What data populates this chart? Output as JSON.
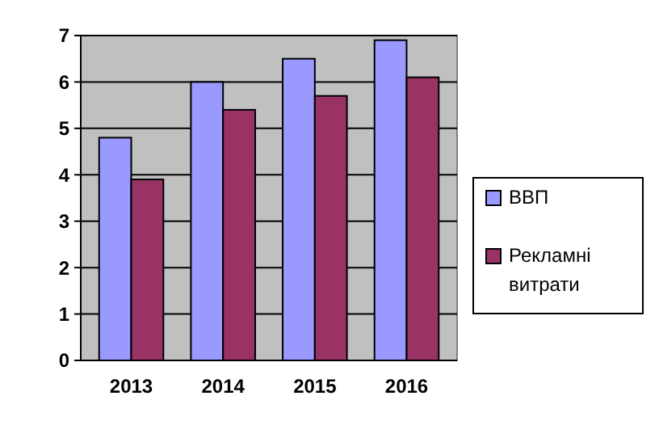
{
  "chart_data": {
    "type": "bar",
    "categories": [
      "2013",
      "2014",
      "2015",
      "2016"
    ],
    "series": [
      {
        "name": "ВВП",
        "color": "#9999ff",
        "values": [
          4.8,
          6.0,
          6.5,
          6.9
        ]
      },
      {
        "name": "Рекламні витрати",
        "color": "#993366",
        "values": [
          3.9,
          5.4,
          5.7,
          6.1
        ]
      }
    ],
    "ylim": [
      0,
      7
    ],
    "yticks": [
      0,
      1,
      2,
      3,
      4,
      5,
      6,
      7
    ],
    "grid": "y",
    "legend": "right"
  }
}
